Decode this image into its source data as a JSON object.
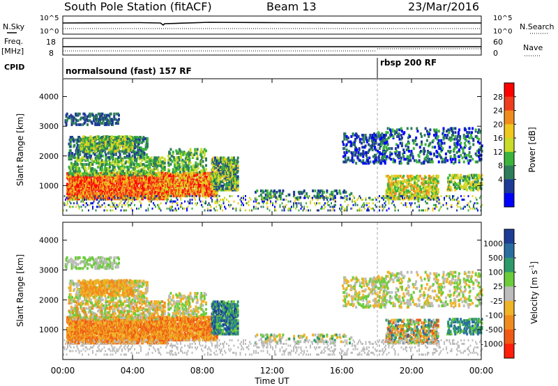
{
  "header": {
    "station": "South Pole Station (fitACF)",
    "beam": "Beam 13",
    "date": "23/Mar/2016"
  },
  "labels": {
    "nsky": "N.Sky",
    "nsearch": "N.Search",
    "freq": "Freq.",
    "mhz": "[MHz]",
    "nave": "Nave",
    "cpid": "CPID",
    "exp1e": "10^5",
    "exp0": "10^0"
  },
  "chart_data": [
    {
      "type": "line",
      "panel": "noise",
      "x": [
        "00:00",
        "04:00",
        "08:00",
        "12:00",
        "16:00",
        "20:00",
        "00:00"
      ],
      "y_left_ticks": [
        "10^5",
        "10^0"
      ],
      "y_right_ticks": [
        "10^5",
        "10^0"
      ],
      "series": [
        {
          "name": "N.Sky",
          "style": "solid"
        },
        {
          "name": "N.Search",
          "style": "dotted"
        }
      ]
    },
    {
      "type": "line",
      "panel": "frequency",
      "ylim_left": [
        8,
        18
      ],
      "left_ticks": [
        "18",
        "8"
      ],
      "ylim_right": [
        0,
        60
      ],
      "right_ticks": [
        "60",
        "0"
      ],
      "series": [
        {
          "name": "Freq.",
          "style": "solid",
          "values_mhz": [
            12.5,
            12.5,
            12.5,
            12.5,
            12.5,
            12.5,
            12.5
          ]
        },
        {
          "name": "Nave",
          "style": "dotted"
        }
      ]
    },
    {
      "type": "table",
      "panel": "cpid",
      "segments": [
        {
          "label": "normalsound (fast) 157 RF",
          "start": "00:00",
          "end": "18:00"
        },
        {
          "label": "rbsp 200 RF",
          "start": "18:00",
          "end": "24:00"
        }
      ]
    },
    {
      "type": "heatmap",
      "panel": "power",
      "ylabel": "Slant Range [km]",
      "xlabel": "Time UT",
      "y_ticks": [
        "1000",
        "2000",
        "3000",
        "4000"
      ],
      "x_ticks": [
        "00:00",
        "04:00",
        "08:00",
        "12:00",
        "16:00",
        "20:00",
        "00:00"
      ],
      "ylim": [
        0,
        4600
      ],
      "colorbar": {
        "label": "Power [dB]",
        "ticks": [
          "4",
          "8",
          "12",
          "16",
          "20",
          "24",
          "28"
        ],
        "colors": [
          "#0000ff",
          "#1e3a96",
          "#2e7d5a",
          "#3cb43c",
          "#c8dc28",
          "#f0c81e",
          "#f08c1e",
          "#f03c1e",
          "#ff0000"
        ]
      }
    },
    {
      "type": "heatmap",
      "panel": "velocity",
      "ylabel": "Slant Range [km]",
      "xlabel": "Time UT",
      "y_ticks": [
        "1000",
        "2000",
        "3000",
        "4000"
      ],
      "x_ticks": [
        "00:00",
        "04:00",
        "08:00",
        "12:00",
        "16:00",
        "20:00",
        "00:00"
      ],
      "ylim": [
        0,
        4600
      ],
      "colorbar": {
        "label": "Velocity [m s",
        "label_sup": "-1",
        "label_close": "]",
        "ticks": [
          "1000",
          "500",
          "100",
          "25",
          "-25",
          "-100",
          "-500",
          "-1000"
        ],
        "colors": [
          "#1e3c96",
          "#2a6ea0",
          "#2e9a6a",
          "#6ccc3a",
          "#bcbcbc",
          "#f0b428",
          "#f08c1e",
          "#f05a14",
          "#ff1e0a"
        ]
      }
    }
  ]
}
